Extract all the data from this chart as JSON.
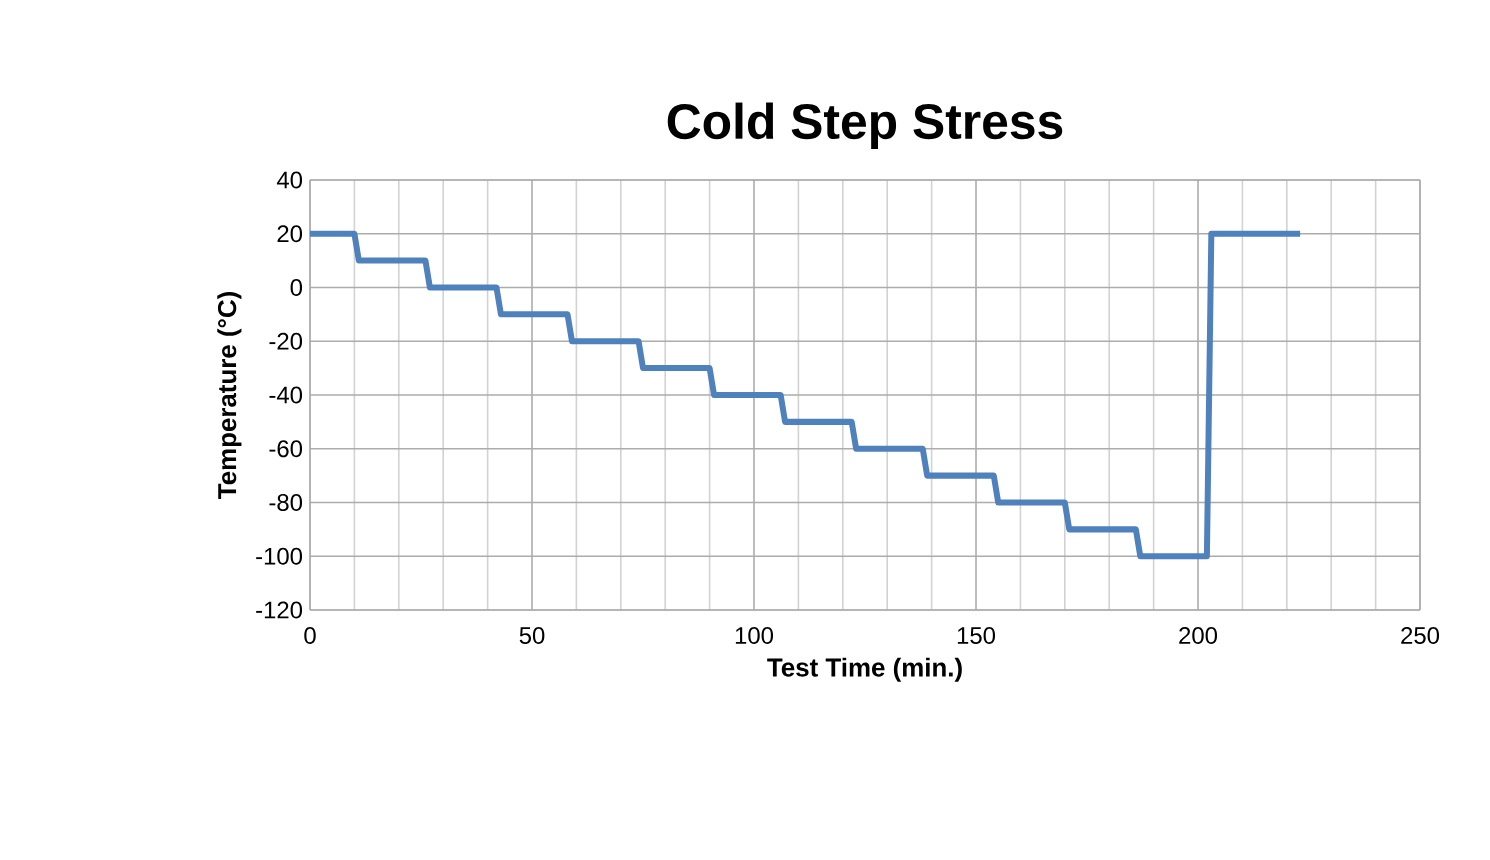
{
  "chart_data": {
    "type": "line",
    "title": "Cold Step Stress",
    "xlabel": "Test Time (min.)",
    "ylabel": "Temperature (°C)",
    "x": [
      0,
      10,
      11,
      26,
      27,
      42,
      43,
      58,
      59,
      74,
      75,
      90,
      91,
      106,
      107,
      122,
      123,
      138,
      139,
      154,
      155,
      170,
      171,
      186,
      187,
      202,
      203,
      223
    ],
    "series": [
      {
        "color": "#4f81bd",
        "values": [
          20,
          20,
          10,
          10,
          0,
          0,
          -10,
          -10,
          -20,
          -20,
          -30,
          -30,
          -40,
          -40,
          -50,
          -50,
          -60,
          -60,
          -70,
          -70,
          -80,
          -80,
          -90,
          -90,
          -100,
          -100,
          20,
          20
        ]
      }
    ],
    "xlim": [
      0,
      250
    ],
    "xticks": [
      0,
      50,
      100,
      150,
      200,
      250
    ],
    "ylim": [
      -120,
      40
    ],
    "yticks": [
      -120,
      -100,
      -80,
      -60,
      -40,
      -20,
      0,
      20,
      40
    ],
    "grid": true,
    "legend": false,
    "marker": "none",
    "line_style": "solid"
  }
}
